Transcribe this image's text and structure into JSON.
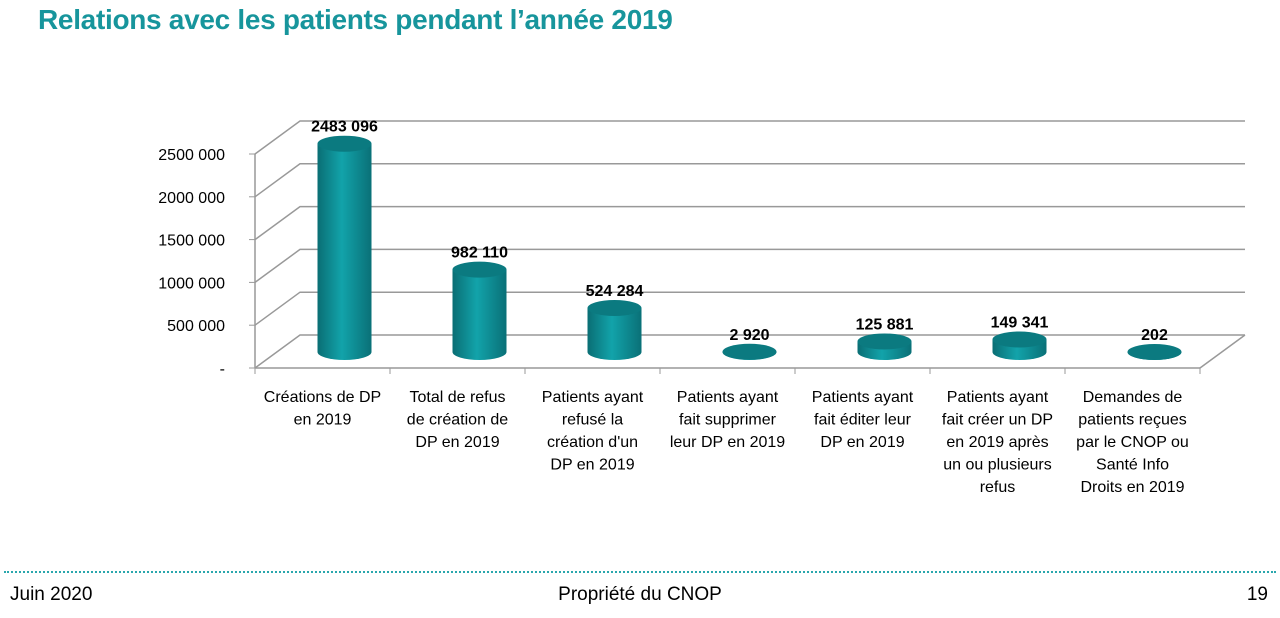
{
  "title": "Relations avec les patients pendant l’année 2019",
  "footer": {
    "date": "Juin 2020",
    "owner": "Propriété du CNOP",
    "page": "19"
  },
  "colors": {
    "title": "#17959c",
    "bar": "#0e9aa0",
    "bar_dark": "#0a6e74"
  },
  "chart_data": {
    "type": "bar",
    "style": "3d-cylinder",
    "grid": true,
    "ylim": [
      0,
      2500000
    ],
    "yticks": [
      "-",
      "500 000",
      "1000 000",
      "1500 000",
      "2000 000",
      "2500 000"
    ],
    "ytick_values": [
      0,
      500000,
      1000000,
      1500000,
      2000000,
      2500000
    ],
    "categories": [
      [
        "Créations de DP",
        "en 2019"
      ],
      [
        "Total de refus",
        "de création de",
        "DP en 2019"
      ],
      [
        "Patients ayant",
        "refusé la",
        "création d'un",
        "DP en 2019"
      ],
      [
        "Patients ayant",
        "fait supprimer",
        "leur DP en 2019"
      ],
      [
        "Patients ayant",
        "fait éditer leur",
        "DP en 2019"
      ],
      [
        "Patients ayant",
        "fait créer un DP",
        "en 2019 après",
        "un ou plusieurs",
        "refus"
      ],
      [
        "Demandes de",
        "patients reçues",
        "par le CNOP ou",
        "Santé Info",
        "Droits en 2019"
      ]
    ],
    "values": [
      2483096,
      982110,
      524284,
      2920,
      125881,
      149341,
      202
    ],
    "data_labels": [
      "2483 096",
      "982 110",
      "524 284",
      "2 920",
      "125 881",
      "149 341",
      "202"
    ]
  }
}
